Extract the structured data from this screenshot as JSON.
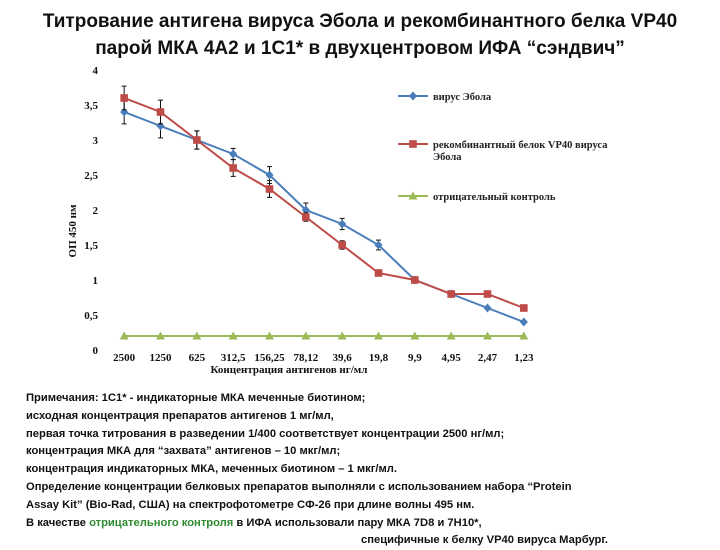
{
  "title": {
    "line1": "Титрование антигена вируса Эбола и рекомбинантного белка VP40",
    "line2": "парой МКА 4А2 и 1С1* в двухцентровом ИФА “сэндвич”"
  },
  "chart_data": {
    "type": "line",
    "xlabel": "Концентрация антигенов нг/мл",
    "ylabel": "ОП 450 нм",
    "ylim": [
      0,
      4
    ],
    "yticks": [
      "0",
      "0,5",
      "1",
      "1,5",
      "2",
      "2,5",
      "3",
      "3,5",
      "4"
    ],
    "categories": [
      "2500",
      "1250",
      "625",
      "312,5",
      "156,25",
      "78,12",
      "39,6",
      "19,8",
      "9,9",
      "4,95",
      "2,47",
      "1,23"
    ],
    "grid": false,
    "legend_position": "right",
    "series": [
      {
        "name": "вирус Эбола",
        "color": "#4a7ebb",
        "marker": "diamond",
        "values": [
          3.4,
          3.2,
          3.0,
          2.8,
          2.5,
          2.0,
          1.8,
          1.5,
          1.0,
          0.8,
          0.6,
          0.4
        ],
        "errors": [
          0.17,
          0.17,
          0.13,
          0.08,
          0.12,
          0.1,
          0.08,
          0.07,
          0,
          0,
          0,
          0
        ]
      },
      {
        "name": "рекомбинантный белок VP40 вируса Эбола",
        "color": "#be4b48",
        "marker": "square",
        "values": [
          3.6,
          3.4,
          3.0,
          2.6,
          2.3,
          1.9,
          1.5,
          1.1,
          1.0,
          0.8,
          0.8,
          0.6
        ],
        "errors": [
          0.17,
          0.17,
          0.13,
          0.12,
          0.12,
          0.06,
          0.06,
          0.03,
          0,
          0,
          0,
          0
        ]
      },
      {
        "name": "отрицательный контроль",
        "color": "#9bbb59",
        "marker": "triangle",
        "values": [
          0.2,
          0.2,
          0.2,
          0.2,
          0.2,
          0.2,
          0.2,
          0.2,
          0.2,
          0.2,
          0.2,
          0.2
        ],
        "errors": [
          0,
          0,
          0,
          0,
          0,
          0,
          0,
          0,
          0,
          0,
          0,
          0
        ]
      }
    ]
  },
  "notes": {
    "line1": "Примечания: 1С1* - индикаторные МКА меченные биотином;",
    "line2": "исходная концентрация препаратов антигенов 1 мг/мл,",
    "line3": "первая точка титрования в разведении 1/400 соответствует концентрации 2500 нг/мл;",
    "line4": "концентрация МКА для “захвата” антигенов – 10 мкг/мл;",
    "line5": "концентрация индикаторных МКА, меченных биотином – 1 мкг/мл.",
    "line6": "Определение концентрации белковых препаратов выполняли с использованием набора “Protein",
    "line7": "Assay Kit” (Bio-Rad, США) на спектрофотометре СФ-26 при длине волны 495 нм.",
    "line8_prefix": "В качестве ",
    "line8_highlight": "отрицательного контроля",
    "line8_suffix": " в ИФА  использовали пару МКА 7D8 и 7Н10*,",
    "line9": "специфичные  к белку VP40 вируса Марбург.",
    "highlight_color": "#2e8b30"
  }
}
